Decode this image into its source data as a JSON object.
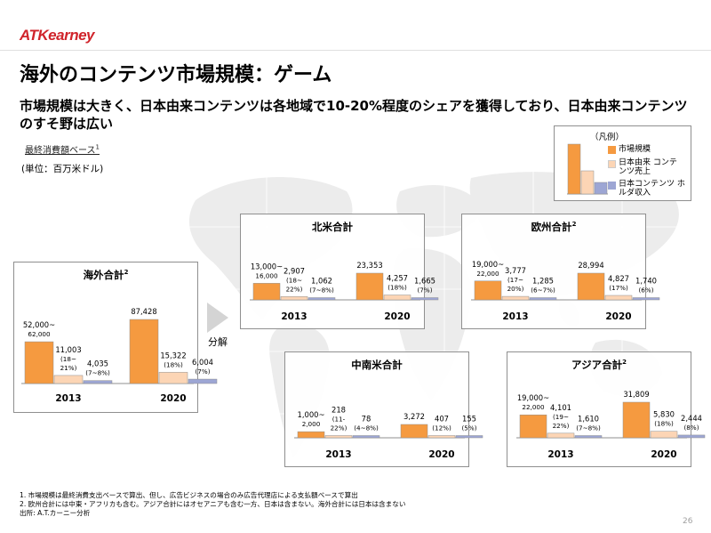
{
  "header": {
    "logo_text": "ATKearney",
    "title": "海外のコンテンツ市場規模：ゲーム",
    "subtitle": "市場規模は大きく、日本由来コンテンツは各地域で10-20%程度のシェアを獲得しており、日本由来コンテンツのすそ野は広い",
    "basis_label": "最終消費額ベース",
    "basis_note_mark": "1",
    "unit": "(単位：百万米ドル)"
  },
  "colors": {
    "market": "#f59a40",
    "japan_origin": "#fcd5b5",
    "japan_holder": "#9da6d4",
    "logo_red": "#d0242b"
  },
  "legend": {
    "title": "（凡例）",
    "items": [
      {
        "label": "市場規模",
        "color": "#f59a40"
      },
      {
        "label": "日本由来 コンテンツ売上",
        "color": "#fcd5b5"
      },
      {
        "label": "日本コンテンツ ホルダ収入",
        "color": "#9da6d4"
      }
    ]
  },
  "arrow_label": "分解",
  "panels": {
    "overseas": {
      "title": "海外合計",
      "note": "2"
    },
    "north_america": {
      "title": "北米合計",
      "note": ""
    },
    "europe": {
      "title": "欧州合計",
      "note": "2"
    },
    "latin_america": {
      "title": "中南米合計",
      "note": ""
    },
    "asia": {
      "title": "アジア合計",
      "note": "2"
    }
  },
  "chart_data": [
    {
      "id": "overseas",
      "type": "bar",
      "title": "海外合計",
      "categories": [
        "2013",
        "2020"
      ],
      "series": [
        {
          "name": "市場規模",
          "values": [
            57000,
            87428
          ],
          "labels": [
            "52,000~|62,000",
            "87,428"
          ]
        },
        {
          "name": "日本由来 コンテンツ売上",
          "values": [
            11003,
            15322
          ],
          "labels": [
            "11,003|(18~|21%)",
            "15,322|(18%)"
          ]
        },
        {
          "name": "日本コンテンツ ホルダ収入",
          "values": [
            4035,
            6004
          ],
          "labels": [
            "4,035|(7~8%)",
            "6,004|(7%)"
          ]
        }
      ]
    },
    {
      "id": "north_america",
      "type": "bar",
      "title": "北米合計",
      "categories": [
        "2013",
        "2020"
      ],
      "series": [
        {
          "name": "市場規模",
          "values": [
            14500,
            23353
          ],
          "labels": [
            "13,000~|16,000",
            "23,353"
          ]
        },
        {
          "name": "日本由来 コンテンツ売上",
          "values": [
            2907,
            4257
          ],
          "labels": [
            "2,907|(18~|22%)",
            "4,257|(18%)"
          ]
        },
        {
          "name": "日本コンテンツ ホルダ収入",
          "values": [
            1062,
            1665
          ],
          "labels": [
            "1,062|(7~8%)",
            "1,665|(7%)"
          ]
        }
      ]
    },
    {
      "id": "europe",
      "type": "bar",
      "title": "欧州合計",
      "categories": [
        "2013",
        "2020"
      ],
      "series": [
        {
          "name": "市場規模",
          "values": [
            20500,
            28994
          ],
          "labels": [
            "19,000~|22,000",
            "28,994"
          ]
        },
        {
          "name": "日本由来 コンテンツ売上",
          "values": [
            3777,
            4827
          ],
          "labels": [
            "3,777|(17~|20%)",
            "4,827|(17%)"
          ]
        },
        {
          "name": "日本コンテンツ ホルダ収入",
          "values": [
            1285,
            1740
          ],
          "labels": [
            "1,285|(6~7%)",
            "1,740|(6%)"
          ]
        }
      ]
    },
    {
      "id": "latin_america",
      "type": "bar",
      "title": "中南米合計",
      "categories": [
        "2013",
        "2020"
      ],
      "series": [
        {
          "name": "市場規模",
          "values": [
            1500,
            3272
          ],
          "labels": [
            "1,000~|2,000",
            "3,272"
          ]
        },
        {
          "name": "日本由来 コンテンツ売上",
          "values": [
            218,
            407
          ],
          "labels": [
            "218|(11-|22%)",
            "407|(12%)"
          ]
        },
        {
          "name": "日本コンテンツ ホルダ収入",
          "values": [
            78,
            155
          ],
          "labels": [
            "78|(4~8%)",
            "155|(5%)"
          ]
        }
      ]
    },
    {
      "id": "asia",
      "type": "bar",
      "title": "アジア合計",
      "categories": [
        "2013",
        "2020"
      ],
      "series": [
        {
          "name": "市場規模",
          "values": [
            20500,
            31809
          ],
          "labels": [
            "19,000~|22,000",
            "31,809"
          ]
        },
        {
          "name": "日本由来 コンテンツ売上",
          "values": [
            4101,
            5830
          ],
          "labels": [
            "4,101|(19~|22%)",
            "5,830|(18%)"
          ]
        },
        {
          "name": "日本コンテンツ ホルダ収入",
          "values": [
            1610,
            2444
          ],
          "labels": [
            "1,610|(7~8%)",
            "2,444|(8%)"
          ]
        }
      ]
    }
  ],
  "footnotes": [
    "1. 市場規模は最終消費支出ベースで算出、但し、広告ビジネスの場合のみ広告代理店による支払額ベースで算出",
    "2. 欧州合計には中東・アフリカも含む。アジア合計にはオセアニアも含む一方、日本は含まない。海外合計には日本は含まない",
    "出所: A.T.カーニー分析"
  ],
  "page_number": "26"
}
